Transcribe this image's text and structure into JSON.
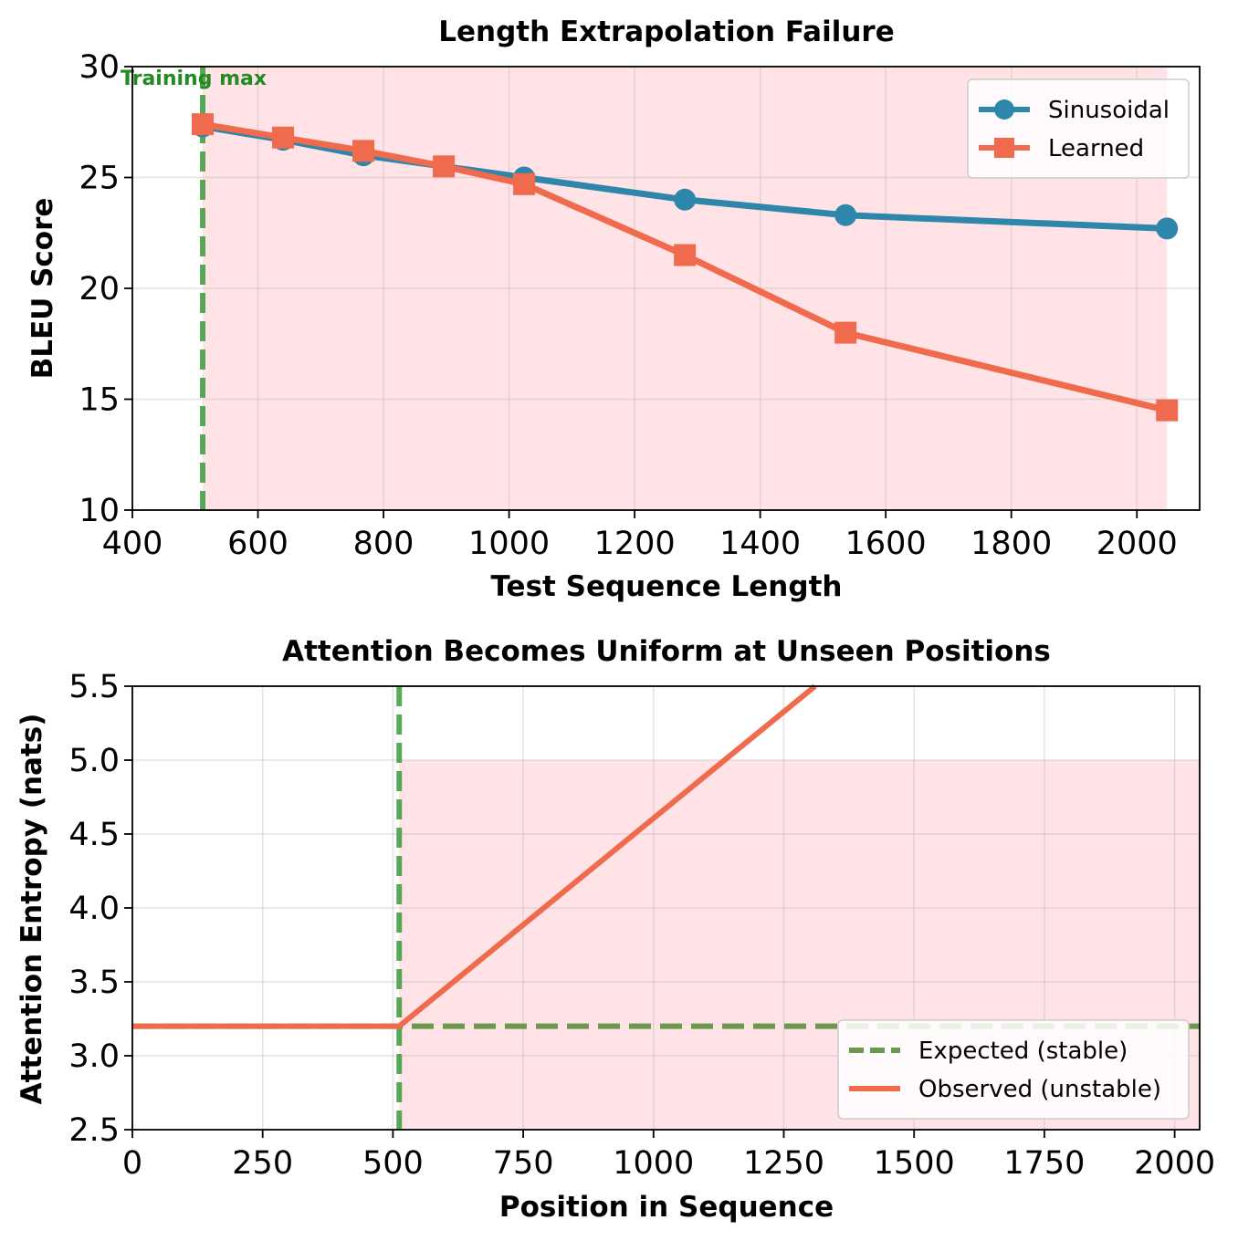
{
  "chart_data": [
    {
      "type": "line",
      "title": "Length Extrapolation Failure",
      "xlabel": "Test Sequence Length",
      "ylabel": "BLEU Score",
      "xlim": [
        400,
        2100
      ],
      "ylim": [
        10,
        30
      ],
      "xticks": [
        400,
        600,
        800,
        1000,
        1200,
        1400,
        1600,
        1800,
        2000
      ],
      "yticks": [
        10,
        15,
        20,
        25,
        30
      ],
      "grid": true,
      "legend_position": "top-right",
      "shaded_region": {
        "x": [
          512,
          2048
        ],
        "color": "#ffe3e6"
      },
      "vline": {
        "x": 512,
        "color": "#3c9a3c",
        "style": "dashed",
        "label": "Training max"
      },
      "series": [
        {
          "name": "Sinusoidal",
          "color": "#2e86ab",
          "marker": "circle",
          "x": [
            512,
            640,
            768,
            896,
            1024,
            1280,
            1536,
            2048
          ],
          "y": [
            27.3,
            26.7,
            26.0,
            25.5,
            25.0,
            24.0,
            23.3,
            22.7
          ]
        },
        {
          "name": "Learned",
          "color": "#f06a4d",
          "marker": "square",
          "x": [
            512,
            640,
            768,
            896,
            1024,
            1280,
            1536,
            2048
          ],
          "y": [
            27.4,
            26.8,
            26.2,
            25.5,
            24.7,
            21.5,
            18.0,
            14.5
          ]
        }
      ]
    },
    {
      "type": "line",
      "title": "Attention Becomes Uniform at Unseen Positions",
      "xlabel": "Position in Sequence",
      "ylabel": "Attention Entropy (nats)",
      "xlim": [
        0,
        2048
      ],
      "ylim": [
        2.5,
        5.5
      ],
      "xticks": [
        0,
        250,
        500,
        750,
        1000,
        1250,
        1500,
        1750,
        2000
      ],
      "ytick_labels": [
        "2.5",
        "3.0",
        "3.5",
        "4.0",
        "4.5",
        "5.0",
        "5.5"
      ],
      "grid": true,
      "legend_position": "bottom-right",
      "shaded_region": {
        "x": [
          512,
          2048
        ],
        "y": [
          2.5,
          5.0
        ],
        "color": "#ffe3e6"
      },
      "vline": {
        "x": 512,
        "color": "#3c9a3c",
        "style": "dashed"
      },
      "series": [
        {
          "name": "Expected (stable)",
          "color": "#6a994e",
          "style": "dashed",
          "x": [
            0,
            2048
          ],
          "y": [
            3.2,
            3.2
          ]
        },
        {
          "name": "Observed (unstable)",
          "color": "#f06a4d",
          "style": "solid",
          "x": [
            0,
            512,
            1310
          ],
          "y": [
            3.2,
            3.2,
            5.5
          ]
        }
      ]
    }
  ]
}
